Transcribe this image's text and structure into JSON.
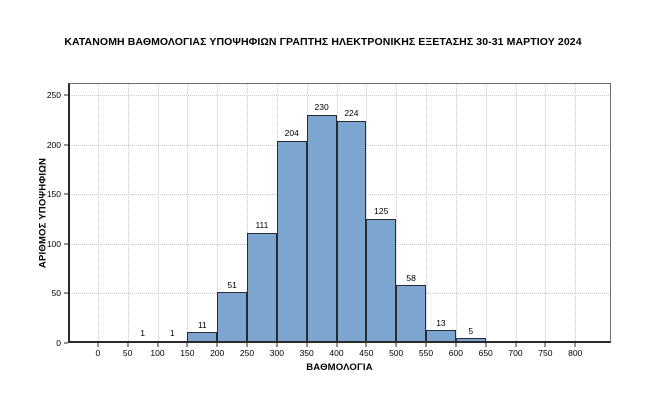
{
  "chart_data": {
    "type": "bar",
    "title": "ΚΑΤΑΝΟΜΗ ΒΑΘΜΟΛΟΓΙΑΣ ΥΠΟΨΗΦΙΩΝ ΓΡΑΠΤΗΣ ΗΛΕΚΤΡΟΝΙΚΗΣ ΕΞΕΤΑΣΗΣ 30-31 ΜΑΡΤΙΟΥ 2024",
    "xlabel": "ΒΑΘΜΟΛΟΓΙΑ",
    "ylabel": "ΑΡΙΘΜΟΣ ΥΠΟΨΗΦΙΩΝ",
    "bin_width": 50,
    "bin_starts": [
      50,
      100,
      150,
      200,
      250,
      300,
      350,
      400,
      450,
      500,
      550,
      600
    ],
    "values": [
      1,
      1,
      11,
      51,
      111,
      204,
      230,
      224,
      125,
      58,
      13,
      5
    ],
    "data_labels": [
      "1",
      "1",
      "11",
      "51",
      "111",
      "204",
      "230",
      "224",
      "125",
      "58",
      "13",
      "5"
    ],
    "x_ticks": [
      0,
      50,
      100,
      150,
      200,
      250,
      300,
      350,
      400,
      450,
      500,
      550,
      600,
      650,
      700,
      750,
      800
    ],
    "y_ticks": [
      0,
      50,
      100,
      150,
      200,
      250
    ],
    "xlim": [
      -50,
      860
    ],
    "ylim": [
      0,
      262
    ],
    "grid": "dotted",
    "legend": false
  },
  "style": {
    "bar_fill": "#7CA6D0",
    "bar_border": "#272C34",
    "grid_color": "#CBCBCB",
    "axis_color": "#2A2A2A",
    "frame_color": "#6E6E6E",
    "text_color": "#000000"
  }
}
